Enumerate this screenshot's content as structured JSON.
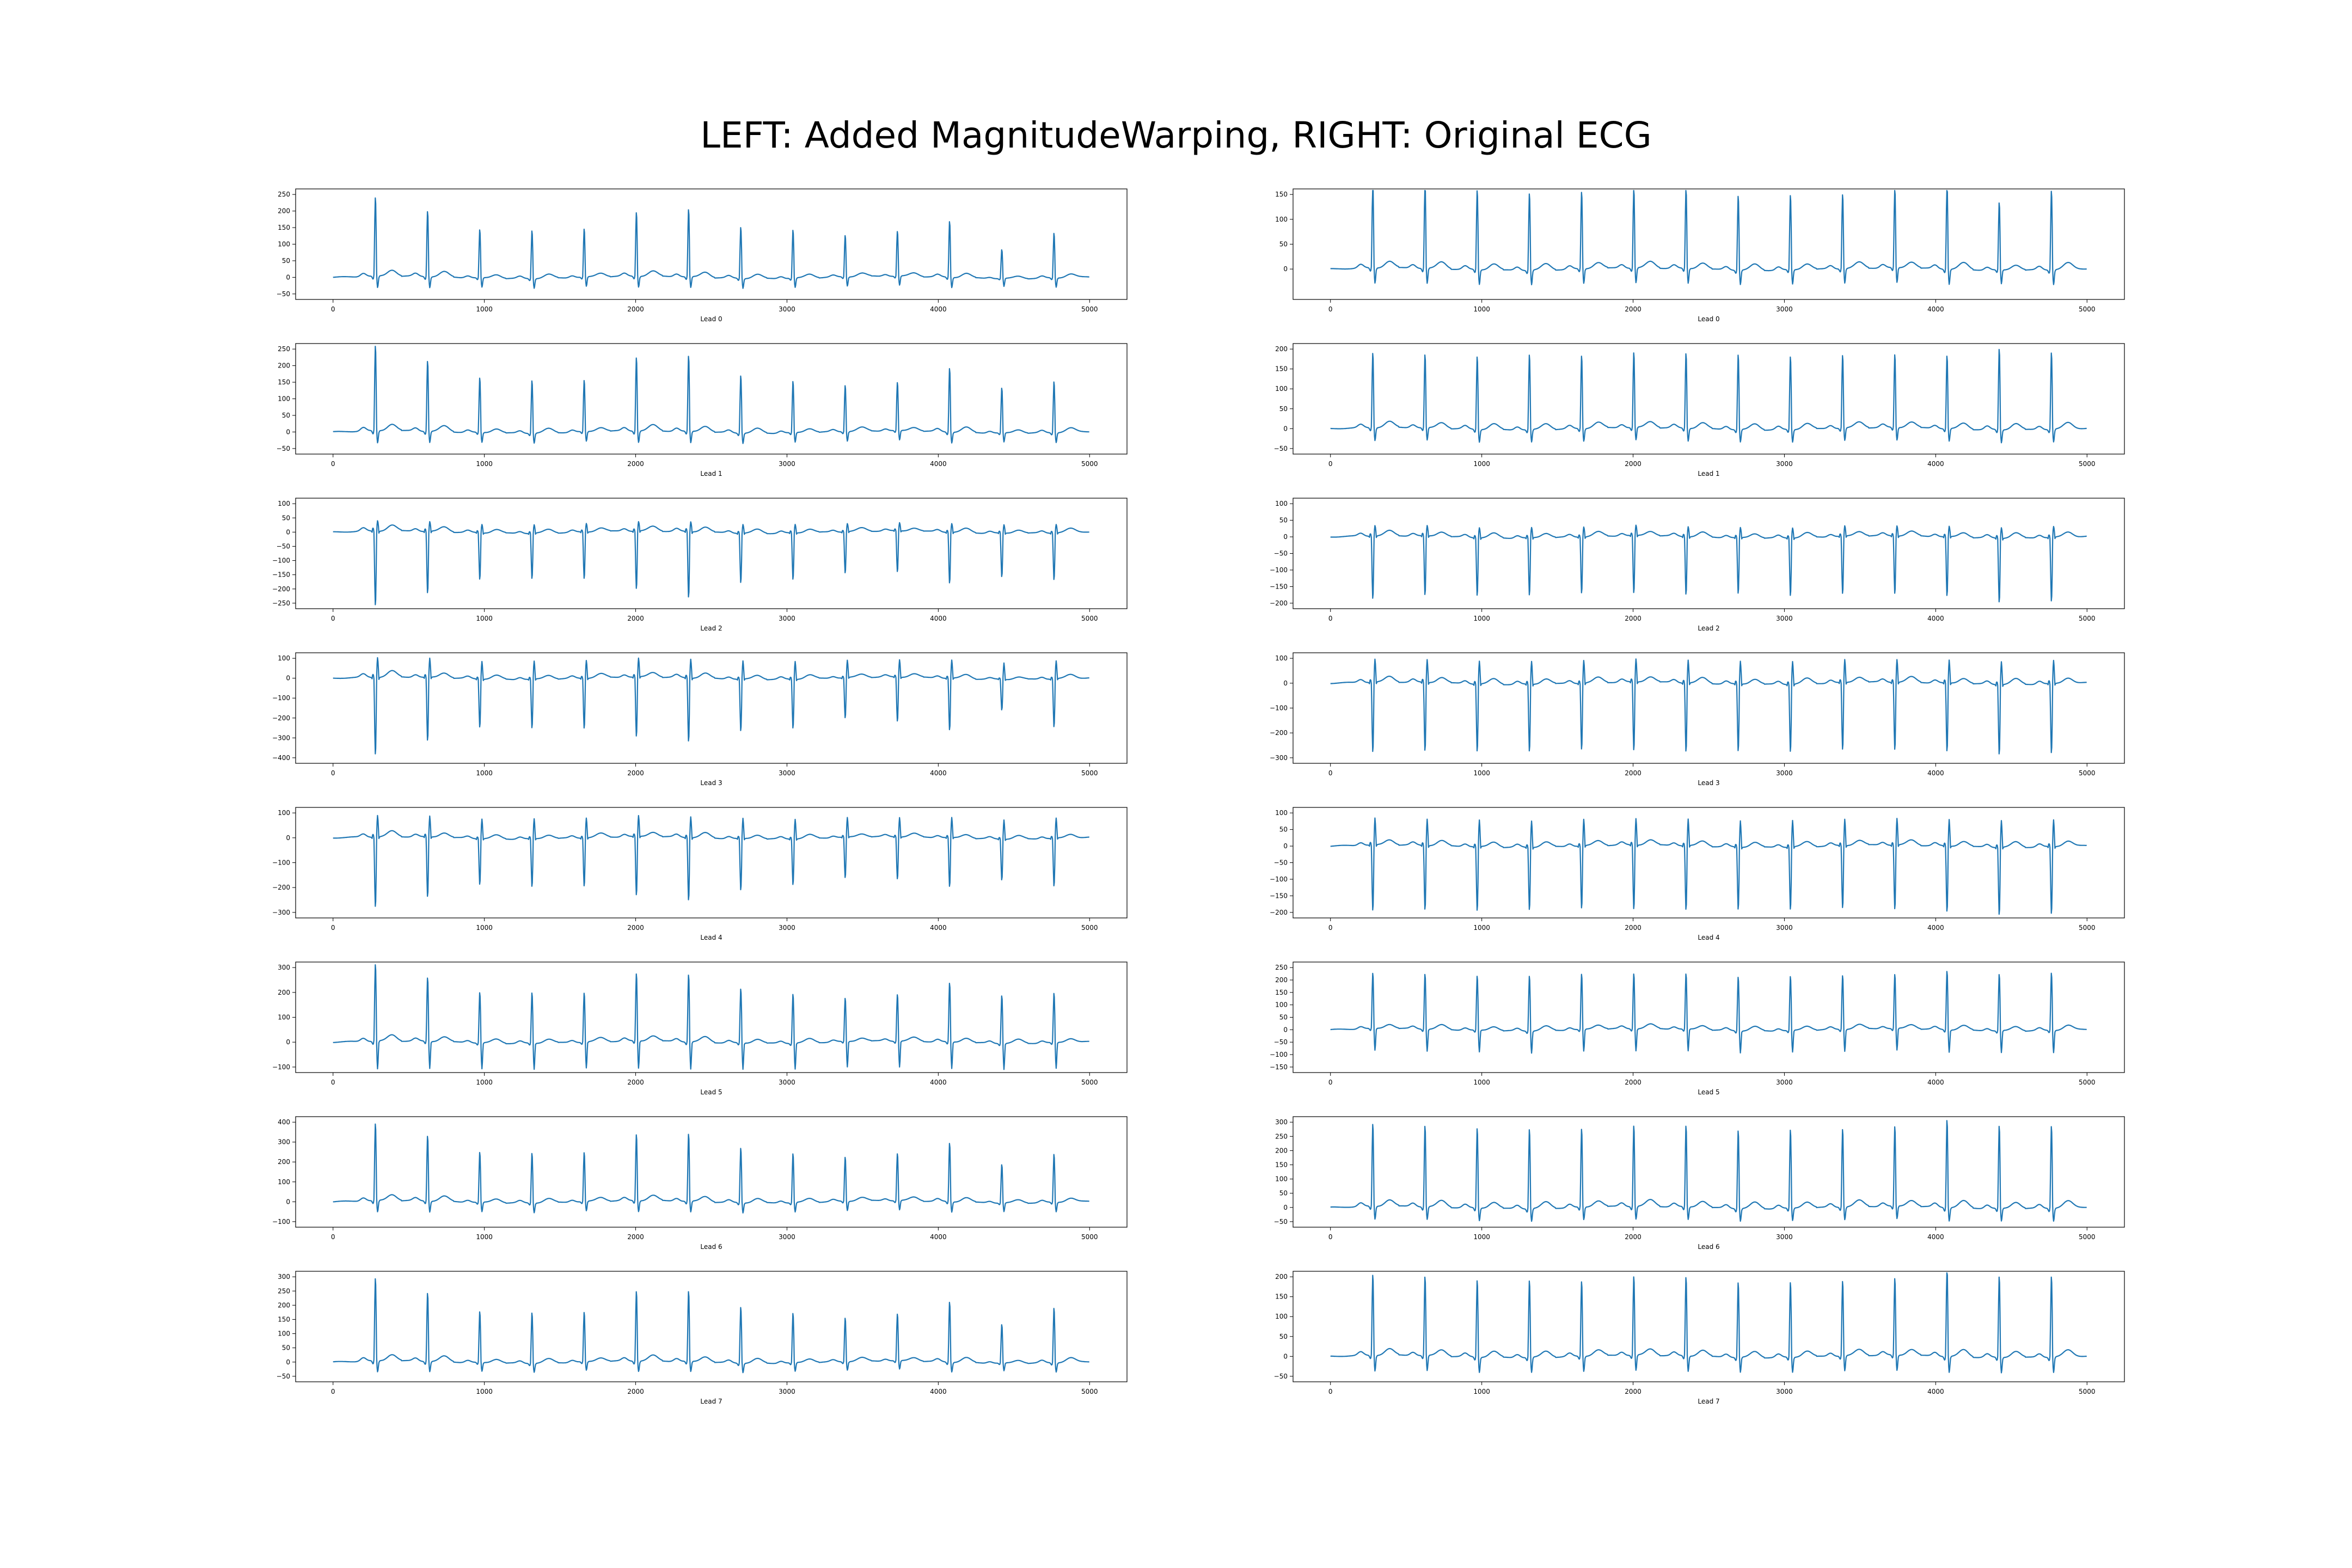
{
  "title": "LEFT: Added MagnitudeWarping, RIGHT: Original ECG",
  "colors": {
    "line": "#1f77b4",
    "frame": "#000000",
    "background": "#ffffff"
  },
  "chart_data": [
    {
      "type": "line",
      "column": "left",
      "label": "Lead 0",
      "xlim": [
        0,
        5000
      ],
      "xticks": [
        0,
        1000,
        2000,
        3000,
        4000,
        5000
      ],
      "ylim": [
        -50,
        250
      ],
      "yticks": [
        -50,
        0,
        50,
        100,
        150,
        200,
        250
      ],
      "peaks": [
        245,
        205,
        150,
        150,
        150,
        200,
        210,
        160,
        150,
        130,
        140,
        175,
        90,
        140
      ],
      "trough": -30
    },
    {
      "type": "line",
      "column": "left",
      "label": "Lead 1",
      "xlim": [
        0,
        5000
      ],
      "xticks": [
        0,
        1000,
        2000,
        3000,
        4000,
        5000
      ],
      "ylim": [
        -50,
        250
      ],
      "yticks": [
        -50,
        0,
        50,
        100,
        150,
        200,
        250
      ],
      "peaks": [
        265,
        220,
        170,
        165,
        160,
        230,
        235,
        180,
        160,
        145,
        150,
        200,
        140,
        160
      ],
      "trough": -30
    },
    {
      "type": "line",
      "column": "left",
      "label": "Lead 2",
      "xlim": [
        0,
        5000
      ],
      "xticks": [
        0,
        1000,
        2000,
        3000,
        4000,
        5000
      ],
      "ylim": [
        -250,
        100
      ],
      "yticks": [
        -250,
        -200,
        -150,
        -100,
        -50,
        0,
        50,
        100
      ],
      "inverted": true,
      "peaks": [
        -270,
        -225,
        -170,
        -165,
        -170,
        -210,
        -240,
        -180,
        -170,
        -150,
        -150,
        -185,
        -160,
        -170
      ],
      "trough": 30
    },
    {
      "type": "line",
      "column": "left",
      "label": "Lead 3",
      "xlim": [
        0,
        5000
      ],
      "xticks": [
        0,
        1000,
        2000,
        3000,
        4000,
        5000
      ],
      "ylim": [
        -400,
        100
      ],
      "yticks": [
        -400,
        -300,
        -200,
        -100,
        0,
        100
      ],
      "inverted": true,
      "peaks": [
        -400,
        -330,
        -250,
        -255,
        -260,
        -310,
        -330,
        -270,
        -255,
        -210,
        -230,
        -270,
        -160,
        -250
      ],
      "trough": 120
    },
    {
      "type": "line",
      "column": "left",
      "label": "Lead 4",
      "xlim": [
        0,
        5000
      ],
      "xticks": [
        0,
        1000,
        2000,
        3000,
        4000,
        5000
      ],
      "ylim": [
        -300,
        100
      ],
      "yticks": [
        -300,
        -200,
        -100,
        0,
        100
      ],
      "inverted": true,
      "peaks": [
        -290,
        -250,
        -190,
        -200,
        -200,
        -245,
        -260,
        -215,
        -190,
        -170,
        -175,
        -205,
        -170,
        -200
      ],
      "trough": 110
    },
    {
      "type": "line",
      "column": "left",
      "label": "Lead 5",
      "xlim": [
        0,
        5000
      ],
      "xticks": [
        0,
        1000,
        2000,
        3000,
        4000,
        5000
      ],
      "ylim": [
        -100,
        300
      ],
      "yticks": [
        -100,
        0,
        100,
        200,
        300
      ],
      "peaks": [
        320,
        265,
        210,
        210,
        205,
        280,
        280,
        225,
        205,
        180,
        195,
        245,
        200,
        205
      ],
      "trough": -150
    },
    {
      "type": "line",
      "column": "left",
      "label": "Lead 6",
      "xlim": [
        0,
        5000
      ],
      "xticks": [
        0,
        1000,
        2000,
        3000,
        4000,
        5000
      ],
      "ylim": [
        -100,
        400
      ],
      "yticks": [
        -100,
        0,
        100,
        200,
        300,
        400
      ],
      "peaks": [
        400,
        340,
        260,
        260,
        255,
        345,
        350,
        285,
        255,
        230,
        245,
        305,
        200,
        250
      ],
      "trough": -50
    },
    {
      "type": "line",
      "column": "left",
      "label": "Lead 7",
      "xlim": [
        0,
        5000
      ],
      "xticks": [
        0,
        1000,
        2000,
        3000,
        4000,
        5000
      ],
      "ylim": [
        -50,
        300
      ],
      "yticks": [
        -50,
        0,
        50,
        100,
        150,
        200,
        250,
        300
      ],
      "peaks": [
        300,
        250,
        185,
        185,
        180,
        255,
        255,
        205,
        180,
        160,
        170,
        220,
        140,
        200
      ],
      "trough": -30
    },
    {
      "type": "line",
      "column": "right",
      "label": "Lead 0",
      "xlim": [
        0,
        5000
      ],
      "xticks": [
        0,
        1000,
        2000,
        3000,
        4000,
        5000
      ],
      "ylim": [
        -50,
        150
      ],
      "yticks": [
        0,
        50,
        100,
        150
      ],
      "peaks": [
        175,
        175,
        165,
        160,
        160,
        165,
        165,
        155,
        155,
        155,
        165,
        175,
        140,
        165
      ],
      "trough": -30
    },
    {
      "type": "line",
      "column": "right",
      "label": "Lead 1",
      "xlim": [
        0,
        5000
      ],
      "xticks": [
        0,
        1000,
        2000,
        3000,
        4000,
        5000
      ],
      "ylim": [
        -50,
        200
      ],
      "yticks": [
        -50,
        0,
        50,
        100,
        150,
        200
      ],
      "peaks": [
        195,
        190,
        190,
        195,
        190,
        195,
        195,
        195,
        190,
        190,
        190,
        190,
        210,
        200
      ],
      "trough": -30
    },
    {
      "type": "line",
      "column": "right",
      "label": "Lead 2",
      "xlim": [
        0,
        5000
      ],
      "xticks": [
        0,
        1000,
        2000,
        3000,
        4000,
        5000
      ],
      "ylim": [
        -200,
        100
      ],
      "yticks": [
        -200,
        -150,
        -100,
        -50,
        0,
        50,
        100
      ],
      "inverted": true,
      "peaks": [
        -195,
        -185,
        -180,
        -180,
        -175,
        -180,
        -180,
        -175,
        -180,
        -180,
        -180,
        -185,
        -200,
        -200
      ],
      "trough": 30
    },
    {
      "type": "line",
      "column": "right",
      "label": "Lead 3",
      "xlim": [
        0,
        5000
      ],
      "xticks": [
        0,
        1000,
        2000,
        3000,
        4000,
        5000
      ],
      "ylim": [
        -300,
        100
      ],
      "yticks": [
        -300,
        -200,
        -100,
        0,
        100
      ],
      "inverted": true,
      "peaks": [
        -290,
        -285,
        -280,
        -280,
        -275,
        -285,
        -285,
        -280,
        -280,
        -280,
        -280,
        -285,
        -290,
        -290
      ],
      "trough": 120
    },
    {
      "type": "line",
      "column": "right",
      "label": "Lead 4",
      "xlim": [
        0,
        5000
      ],
      "xticks": [
        0,
        1000,
        2000,
        3000,
        4000,
        5000
      ],
      "ylim": [
        -200,
        100
      ],
      "yticks": [
        -200,
        -150,
        -100,
        -50,
        0,
        50,
        100
      ],
      "inverted": true,
      "peaks": [
        -205,
        -200,
        -200,
        -195,
        -195,
        -200,
        -200,
        -195,
        -195,
        -195,
        -200,
        -205,
        -210,
        -210
      ],
      "trough": 110
    },
    {
      "type": "line",
      "column": "right",
      "label": "Lead 5",
      "xlim": [
        0,
        5000
      ],
      "xticks": [
        0,
        1000,
        2000,
        3000,
        4000,
        5000
      ],
      "ylim": [
        -150,
        250
      ],
      "yticks": [
        -150,
        -100,
        -50,
        0,
        50,
        100,
        150,
        200,
        250
      ],
      "peaks": [
        230,
        230,
        225,
        230,
        230,
        230,
        230,
        225,
        225,
        225,
        225,
        245,
        235,
        240
      ],
      "trough": -120
    },
    {
      "type": "line",
      "column": "right",
      "label": "Lead 6",
      "xlim": [
        0,
        5000
      ],
      "xticks": [
        0,
        1000,
        2000,
        3000,
        4000,
        5000
      ],
      "ylim": [
        -50,
        300
      ],
      "yticks": [
        -50,
        0,
        50,
        100,
        150,
        200,
        250,
        300
      ],
      "peaks": [
        300,
        295,
        290,
        290,
        285,
        295,
        295,
        285,
        285,
        285,
        290,
        320,
        300,
        300
      ],
      "trough": -40
    },
    {
      "type": "line",
      "column": "right",
      "label": "Lead 7",
      "xlim": [
        0,
        5000
      ],
      "xticks": [
        0,
        1000,
        2000,
        3000,
        4000,
        5000
      ],
      "ylim": [
        -50,
        200
      ],
      "yticks": [
        -50,
        0,
        50,
        100,
        150,
        200
      ],
      "peaks": [
        210,
        205,
        200,
        200,
        195,
        205,
        205,
        195,
        195,
        195,
        200,
        230,
        210,
        210
      ],
      "trough": -40
    }
  ]
}
